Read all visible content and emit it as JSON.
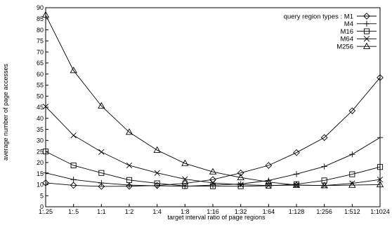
{
  "chart_data": {
    "type": "line",
    "xlabel": "target interval ratio of page regions",
    "ylabel": "average number of page accesses",
    "ylim": [
      0,
      90
    ],
    "yticks": [
      0,
      5,
      10,
      15,
      20,
      25,
      30,
      35,
      40,
      45,
      50,
      55,
      60,
      65,
      70,
      75,
      80,
      85,
      90
    ],
    "categories": [
      "1:.25",
      "1:.5",
      "1:1",
      "1:2",
      "1:4",
      "1:8",
      "1:16",
      "1:32",
      "1:64",
      "1:128",
      "1:256",
      "1:512",
      "1:1024"
    ],
    "grid": false,
    "legend": {
      "position": "top-right",
      "title": "query region types :"
    },
    "series": [
      {
        "name": "M1",
        "marker": "diamond",
        "values": [
          10.8,
          9.7,
          9.2,
          9.3,
          9.6,
          10.6,
          12.3,
          15.3,
          18.7,
          24.5,
          31.3,
          43.4,
          58.4
        ]
      },
      {
        "name": "M4",
        "marker": "plus",
        "values": [
          15.3,
          12.3,
          10.8,
          9.8,
          9.5,
          9.3,
          9.8,
          10.3,
          11.9,
          14.8,
          18.2,
          23.7,
          31.3
        ]
      },
      {
        "name": "M16",
        "marker": "square",
        "values": [
          25.0,
          18.7,
          15.3,
          12.1,
          10.6,
          9.4,
          9.3,
          9.3,
          9.5,
          10.2,
          11.9,
          14.7,
          18.0
        ]
      },
      {
        "name": "M64",
        "marker": "cross",
        "values": [
          45.3,
          32.3,
          24.8,
          18.7,
          15.3,
          12.5,
          10.8,
          10.0,
          9.6,
          9.8,
          9.6,
          10.6,
          12.3
        ]
      },
      {
        "name": "M256",
        "marker": "triangle",
        "values": [
          86.7,
          61.6,
          45.6,
          33.7,
          25.6,
          19.6,
          15.8,
          13.2,
          11.2,
          9.8,
          9.6,
          9.8,
          10.0
        ]
      }
    ]
  }
}
